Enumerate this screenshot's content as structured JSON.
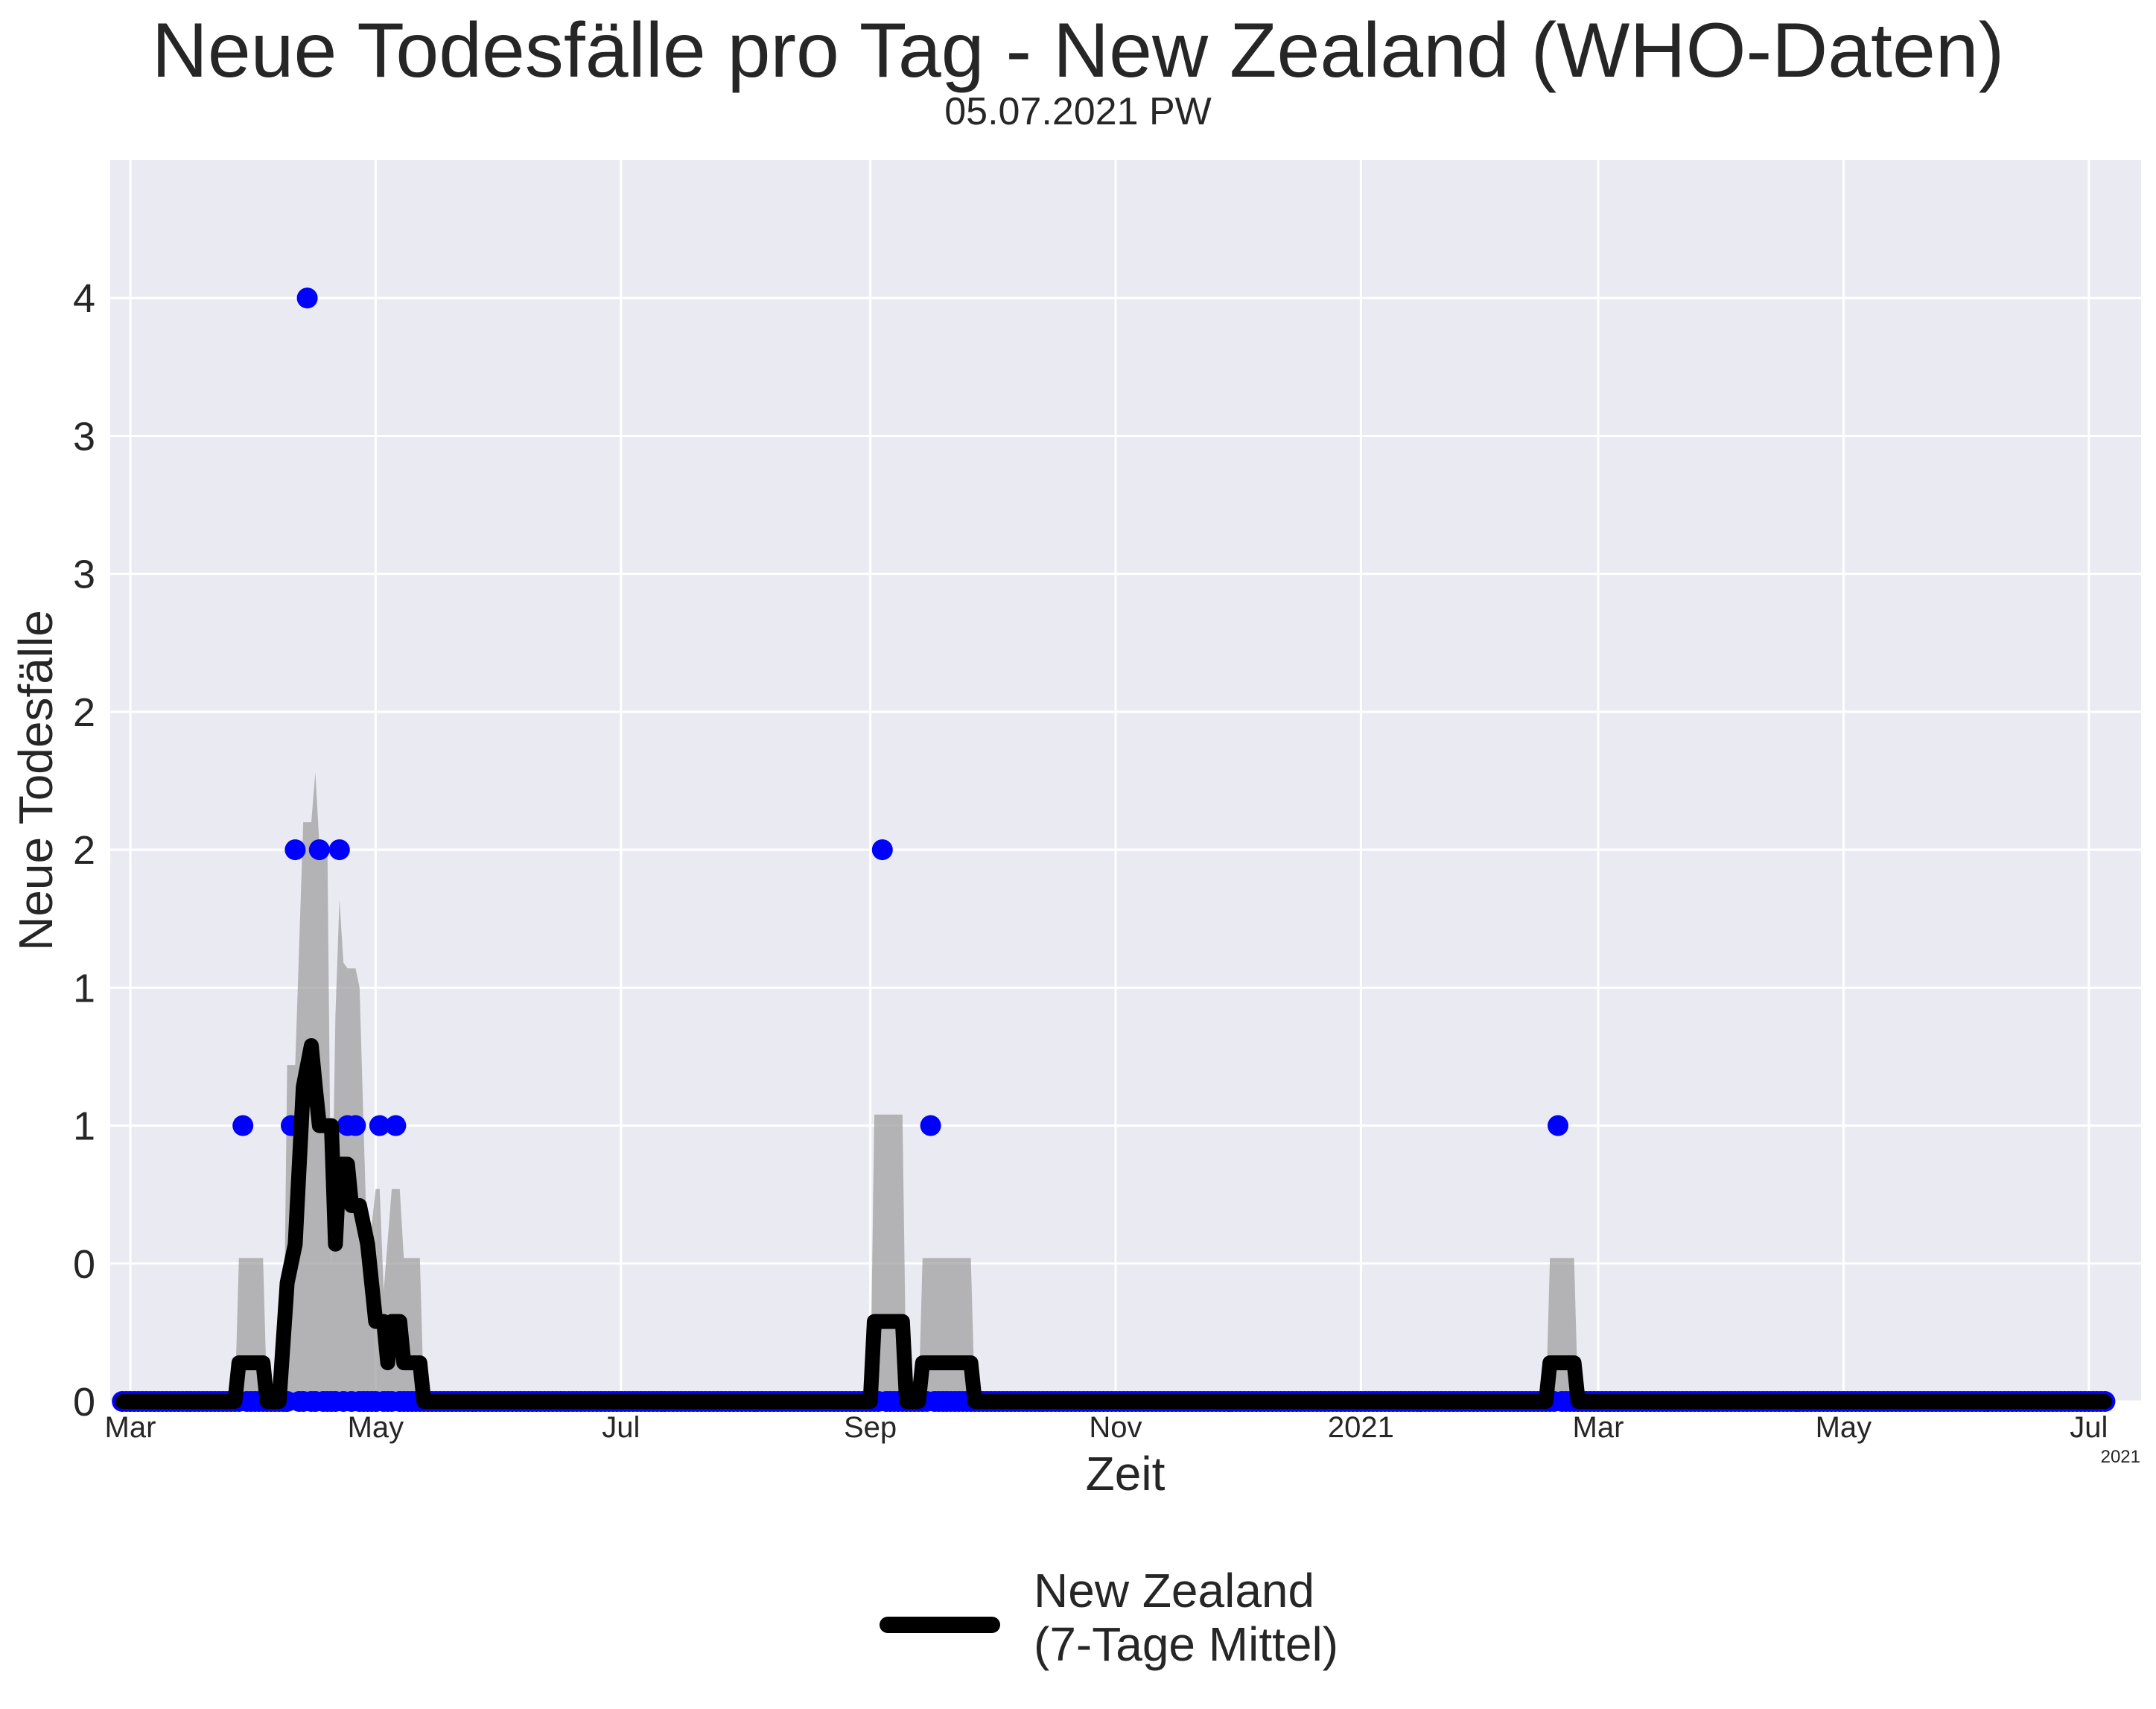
{
  "chart_data": {
    "type": "line",
    "title": "Neue Todesfälle pro Tag - New Zealand (WHO-Daten)",
    "subtitle": "05.07.2021 PW",
    "xlabel": "Zeit",
    "ylabel": "Neue Todesfälle",
    "x_range": [
      "2020-02-25",
      "2021-07-14"
    ],
    "ylim": [
      0,
      4.5
    ],
    "grid": true,
    "x_ticks": [
      {
        "date": "2020-03-01",
        "label": "Mar"
      },
      {
        "date": "2020-05-01",
        "label": "May"
      },
      {
        "date": "2020-07-01",
        "label": "Jul"
      },
      {
        "date": "2020-09-01",
        "label": "Sep"
      },
      {
        "date": "2020-11-01",
        "label": "Nov"
      },
      {
        "date": "2021-01-01",
        "label": "2021"
      },
      {
        "date": "2021-03-01",
        "label": "Mar"
      },
      {
        "date": "2021-05-01",
        "label": "May"
      },
      {
        "date": "2021-07-01",
        "label": "Jul"
      }
    ],
    "x_offset_label": "2021",
    "y_ticks": [
      {
        "value": 0,
        "label": "0"
      },
      {
        "value": 0.5,
        "label": "0"
      },
      {
        "value": 1,
        "label": "1"
      },
      {
        "value": 1.5,
        "label": "1"
      },
      {
        "value": 2,
        "label": "2"
      },
      {
        "value": 2.5,
        "label": "2"
      },
      {
        "value": 3,
        "label": "3"
      },
      {
        "value": 3.5,
        "label": "3"
      },
      {
        "value": 4,
        "label": "4"
      }
    ],
    "legend": {
      "position": "bottom-center",
      "label": "New Zealand\n(7-Tage Mittel)"
    },
    "colors": {
      "points": "#0000ff",
      "mean_line": "#000000",
      "band": "#a0a0a0",
      "plot_bg": "#eaeaf2",
      "grid": "#ffffff"
    },
    "series": [
      {
        "name": "New Zealand\n(7-Tage Mittel)",
        "kind": "line",
        "points": [
          [
            "2020-02-28",
            0
          ],
          [
            "2020-03-27",
            0
          ],
          [
            "2020-03-28",
            0.14
          ],
          [
            "2020-04-03",
            0.14
          ],
          [
            "2020-04-04",
            0
          ],
          [
            "2020-04-07",
            0
          ],
          [
            "2020-04-09",
            0.43
          ],
          [
            "2020-04-11",
            0.57
          ],
          [
            "2020-04-13",
            1.14
          ],
          [
            "2020-04-15",
            1.29
          ],
          [
            "2020-04-16",
            1.14
          ],
          [
            "2020-04-17",
            1.0
          ],
          [
            "2020-04-20",
            1.0
          ],
          [
            "2020-04-21",
            0.57
          ],
          [
            "2020-04-22",
            0.86
          ],
          [
            "2020-04-24",
            0.86
          ],
          [
            "2020-04-25",
            0.71
          ],
          [
            "2020-04-27",
            0.71
          ],
          [
            "2020-04-29",
            0.57
          ],
          [
            "2020-05-01",
            0.29
          ],
          [
            "2020-05-03",
            0.29
          ],
          [
            "2020-05-04",
            0.14
          ],
          [
            "2020-05-05",
            0.29
          ],
          [
            "2020-05-07",
            0.29
          ],
          [
            "2020-05-08",
            0.14
          ],
          [
            "2020-05-12",
            0.14
          ],
          [
            "2020-05-13",
            0
          ],
          [
            "2020-09-01",
            0
          ],
          [
            "2020-09-02",
            0.29
          ],
          [
            "2020-09-09",
            0.29
          ],
          [
            "2020-09-10",
            0
          ],
          [
            "2020-09-13",
            0
          ],
          [
            "2020-09-14",
            0.14
          ],
          [
            "2020-09-26",
            0.14
          ],
          [
            "2020-09-27",
            0
          ],
          [
            "2021-02-16",
            0
          ],
          [
            "2021-02-17",
            0.14
          ],
          [
            "2021-02-23",
            0.14
          ],
          [
            "2021-02-24",
            0
          ],
          [
            "2021-07-05",
            0
          ]
        ]
      },
      {
        "name": "",
        "kind": "band",
        "points": [
          [
            "2020-03-27",
            0
          ],
          [
            "2020-03-28",
            0.52
          ],
          [
            "2020-04-03",
            0.52
          ],
          [
            "2020-04-04",
            0
          ],
          [
            "2020-04-08",
            0
          ],
          [
            "2020-04-09",
            1.22
          ],
          [
            "2020-04-11",
            1.22
          ],
          [
            "2020-04-13",
            2.1
          ],
          [
            "2020-04-15",
            2.1
          ],
          [
            "2020-04-16",
            2.28
          ],
          [
            "2020-04-17",
            2.02
          ],
          [
            "2020-04-19",
            2.02
          ],
          [
            "2020-04-20",
            0.5
          ],
          [
            "2020-04-21",
            1.4
          ],
          [
            "2020-04-22",
            1.82
          ],
          [
            "2020-04-23",
            1.59
          ],
          [
            "2020-04-24",
            1.57
          ],
          [
            "2020-04-26",
            1.57
          ],
          [
            "2020-04-27",
            1.5
          ],
          [
            "2020-04-28",
            1.0
          ],
          [
            "2020-04-29",
            0.5
          ],
          [
            "2020-05-01",
            0.77
          ],
          [
            "2020-05-02",
            0.77
          ],
          [
            "2020-05-03",
            0.4
          ],
          [
            "2020-05-05",
            0.77
          ],
          [
            "2020-05-07",
            0.77
          ],
          [
            "2020-05-08",
            0.52
          ],
          [
            "2020-05-12",
            0.52
          ],
          [
            "2020-05-13",
            0
          ],
          [
            "2020-09-01",
            0
          ],
          [
            "2020-09-02",
            1.04
          ],
          [
            "2020-09-09",
            1.04
          ],
          [
            "2020-09-10",
            0
          ],
          [
            "2020-09-13",
            0
          ],
          [
            "2020-09-14",
            0.52
          ],
          [
            "2020-09-26",
            0.52
          ],
          [
            "2020-09-27",
            0
          ],
          [
            "2021-02-16",
            0
          ],
          [
            "2021-02-17",
            0.52
          ],
          [
            "2021-02-23",
            0.52
          ],
          [
            "2021-02-24",
            0
          ]
        ]
      },
      {
        "name": "",
        "kind": "scatter",
        "nonzero_points": [
          [
            "2020-03-29",
            1
          ],
          [
            "2020-04-10",
            1
          ],
          [
            "2020-04-11",
            2
          ],
          [
            "2020-04-14",
            4
          ],
          [
            "2020-04-17",
            2
          ],
          [
            "2020-04-22",
            2
          ],
          [
            "2020-04-24",
            1
          ],
          [
            "2020-04-26",
            1
          ],
          [
            "2020-05-02",
            1
          ],
          [
            "2020-05-06",
            1
          ],
          [
            "2020-09-04",
            2
          ],
          [
            "2020-09-16",
            1
          ],
          [
            "2021-02-19",
            1
          ]
        ],
        "zero_point_range": [
          "2020-02-28",
          "2021-07-05"
        ]
      }
    ]
  }
}
